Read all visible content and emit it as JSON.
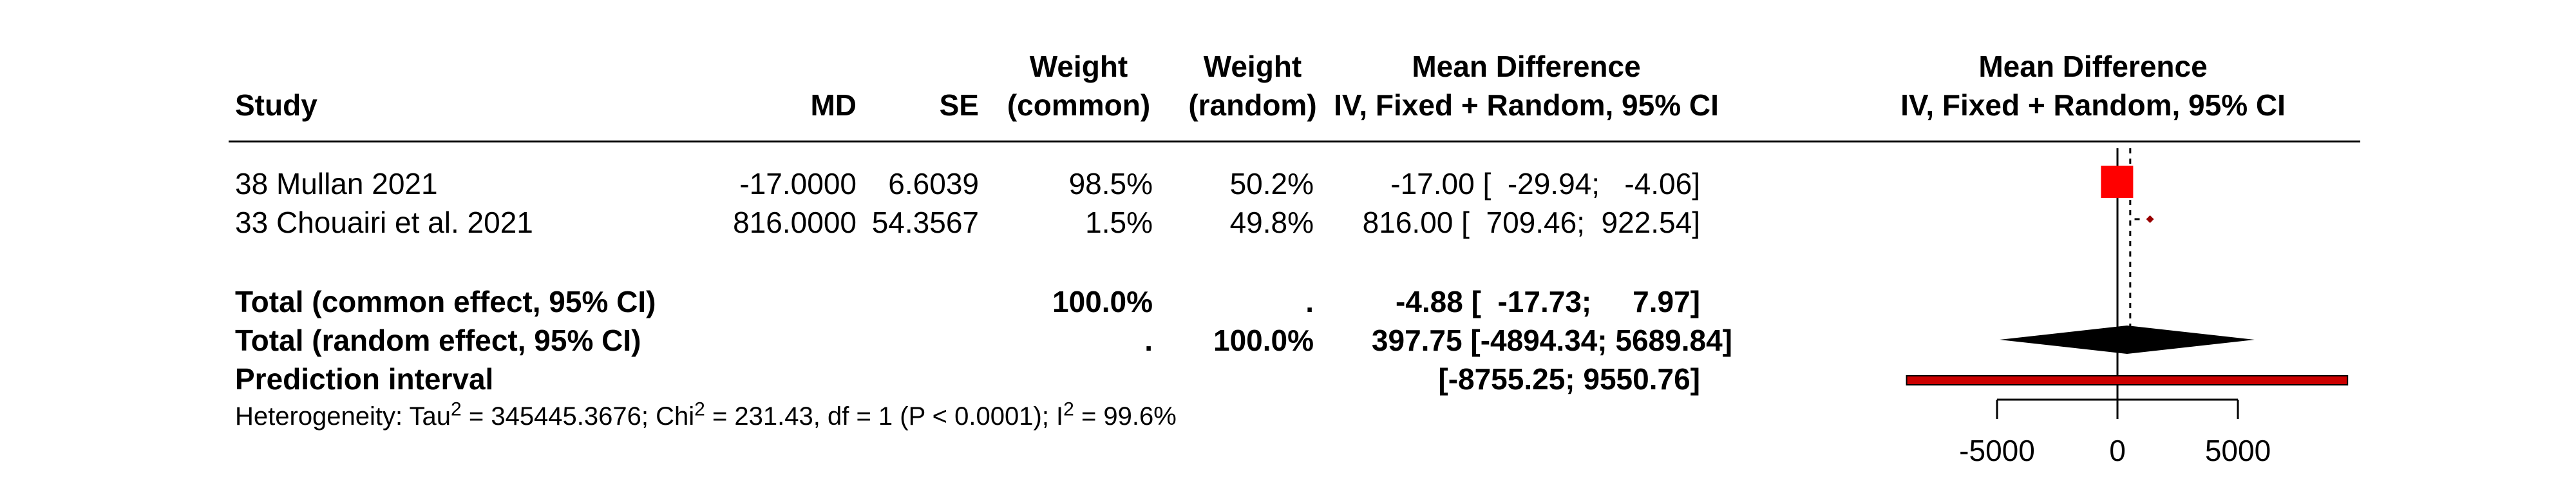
{
  "columns": {
    "study": "Study",
    "md": "MD",
    "se": "SE",
    "weight_common": [
      "Weight",
      "(common)"
    ],
    "weight_random": [
      "Weight",
      "(random)"
    ],
    "ci": [
      "Mean Difference",
      "IV, Fixed + Random, 95% CI"
    ],
    "plot": [
      "Mean Difference",
      "IV, Fixed + Random, 95% CI"
    ]
  },
  "studies": [
    {
      "name": "38 Mullan 2021",
      "md": "-17.0000",
      "se": "6.6039",
      "w_common": "98.5%",
      "w_random": "50.2%",
      "ci": "-17.00 [  -29.94;   -4.06]"
    },
    {
      "name": "33 Chouairi et al. 2021",
      "md": "816.0000",
      "se": "54.3567",
      "w_common": "1.5%",
      "w_random": "49.8%",
      "ci": "816.00 [  709.46;  922.54]"
    }
  ],
  "totals": [
    {
      "label": "Total (common effect, 95% CI)",
      "w_common": "100.0%",
      "w_random": ".",
      "ci": "-4.88 [  -17.73;     7.97]"
    },
    {
      "label": "Total (random effect, 95% CI)",
      "w_common": ".",
      "w_random": "100.0%",
      "ci": "397.75 [-4894.34; 5689.84]"
    },
    {
      "label": "Prediction interval",
      "w_common": "",
      "w_random": "",
      "ci": "[-8755.25; 9550.76]"
    }
  ],
  "heterogeneity": {
    "prefix": "Heterogeneity: Tau",
    "tau2": "2",
    "tau_value": " = 345445.3676; Chi",
    "chi2": "2",
    "chi_value": " = 231.43, df = 1 (P < 0.0001); I",
    "i2": "2",
    "i_value": " = 99.6%"
  },
  "colors": {
    "square": "#ff0000",
    "diamond": "#000000",
    "prediction": "#cc0000",
    "ci_line": "#000000"
  },
  "chart_data": {
    "type": "forest",
    "xlim": [
      -8755.25,
      9550.76
    ],
    "ticks": [
      -5000,
      0,
      5000
    ],
    "tick_labels": [
      "-5000",
      "0",
      "5000"
    ],
    "reference_line": 0,
    "common_effect_line": -4.88,
    "studies": [
      {
        "name": "38 Mullan 2021",
        "estimate": -17.0,
        "lower": -29.94,
        "upper": -4.06,
        "weight_common": 98.5
      },
      {
        "name": "33 Chouairi et al. 2021",
        "estimate": 816.0,
        "lower": 709.46,
        "upper": 922.54,
        "weight_common": 1.5
      }
    ],
    "common_effect": {
      "estimate": -4.88,
      "lower": -17.73,
      "upper": 7.97
    },
    "random_effect": {
      "estimate": 397.75,
      "lower": -4894.34,
      "upper": 5689.84
    },
    "prediction_interval": {
      "lower": -8755.25,
      "upper": 9550.76
    }
  }
}
